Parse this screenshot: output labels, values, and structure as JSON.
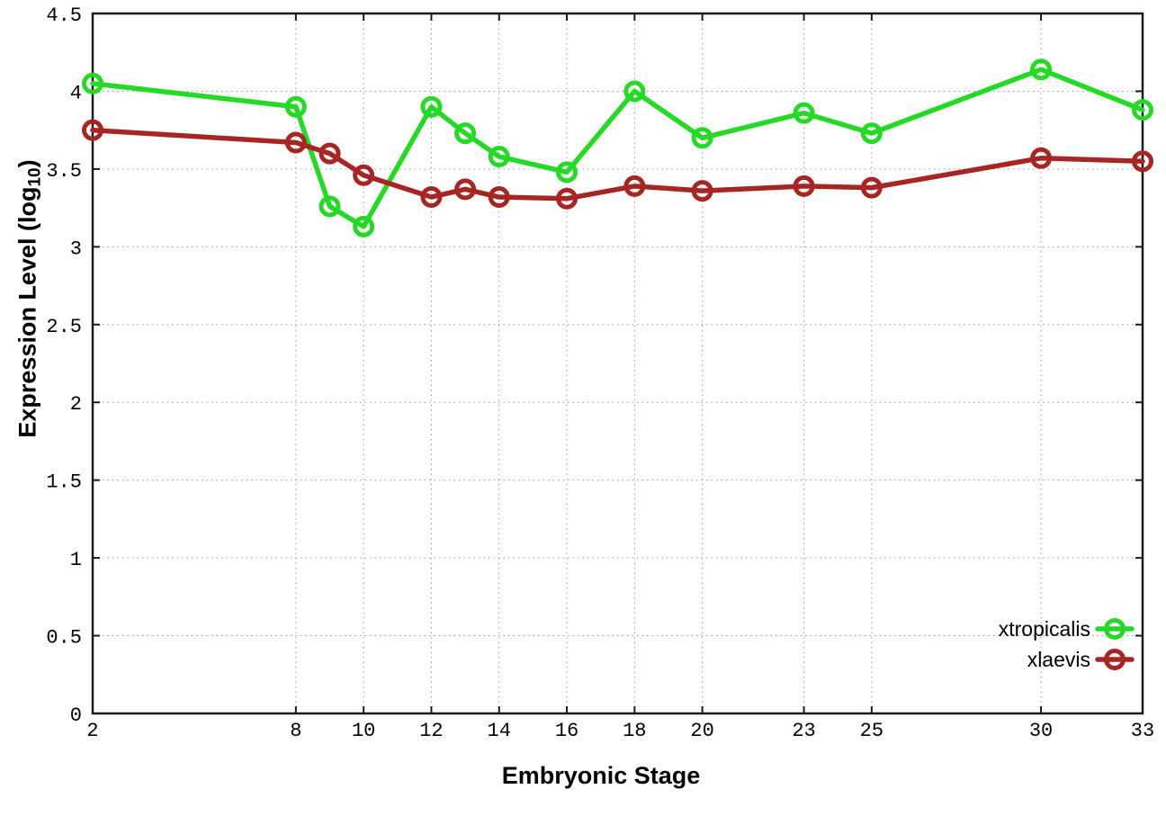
{
  "page": {
    "background": "#ffffff"
  },
  "colors": {
    "axis": "#1a1a1a",
    "grid": "#9a9a9a",
    "text": "#000000",
    "xtropicalis": "#26d926",
    "xlaevis": "#a52623"
  },
  "chart_data": {
    "type": "line",
    "title": "",
    "xlabel": "Embryonic Stage",
    "ylabel": "Expression Level (log10)",
    "ylabel_parts": {
      "prefix": "Expression Level (log",
      "sub": "10",
      "suffix": ")"
    },
    "xlim": [
      2,
      33
    ],
    "ylim": [
      0,
      4.5
    ],
    "grid": true,
    "x_ticks": {
      "values": [
        2,
        8,
        10,
        12,
        14,
        16,
        18,
        20,
        23,
        25,
        30,
        33
      ],
      "labels": [
        "2",
        "8",
        "10",
        "12",
        "14",
        "16",
        "18",
        "20",
        "23",
        "25",
        "30",
        "33"
      ]
    },
    "y_ticks": {
      "values": [
        0,
        0.5,
        1,
        1.5,
        2,
        2.5,
        3,
        3.5,
        4,
        4.5
      ],
      "labels": [
        "0",
        "0.5",
        "1",
        "1.5",
        "2",
        "2.5",
        "3",
        "3.5",
        "4",
        "4.5"
      ]
    },
    "x": [
      2,
      8,
      9,
      10,
      12,
      13,
      14,
      16,
      18,
      20,
      23,
      25,
      30,
      33
    ],
    "series": [
      {
        "name": "xtropicalis",
        "color": "#26d926",
        "values": [
          4.05,
          3.9,
          3.26,
          3.13,
          3.9,
          3.73,
          3.58,
          3.48,
          4.0,
          3.7,
          3.86,
          3.73,
          4.14,
          3.88
        ]
      },
      {
        "name": "xlaevis",
        "color": "#a52623",
        "values": [
          3.75,
          3.67,
          3.6,
          3.46,
          3.32,
          3.37,
          3.32,
          3.31,
          3.39,
          3.36,
          3.39,
          3.38,
          3.57,
          3.55
        ]
      }
    ],
    "legend": {
      "position": "bottom-right-inside",
      "entries": [
        "xtropicalis",
        "xlaevis"
      ]
    }
  }
}
